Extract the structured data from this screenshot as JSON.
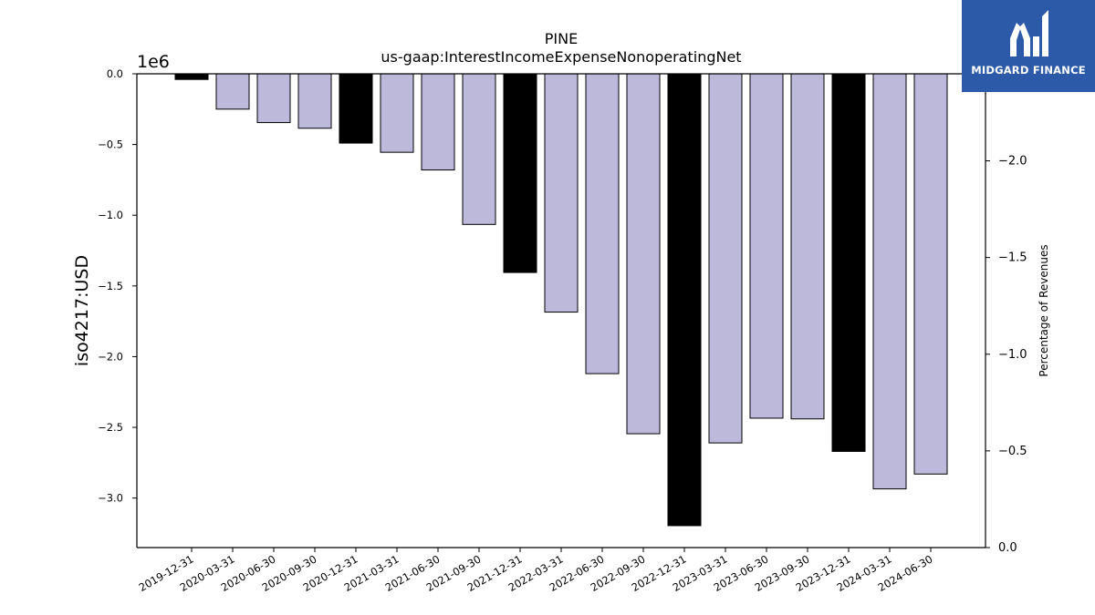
{
  "chart_data": {
    "type": "bar",
    "title": "PINE",
    "subtitle": "us-gaap:InterestIncomeExpenseNonoperatingNet",
    "ylabel": "iso4217:USD",
    "y_offset_text": "1e6",
    "y2label": "Percentage of Revenues",
    "categories": [
      "2019-12-31",
      "2020-03-31",
      "2020-06-30",
      "2020-09-30",
      "2020-12-31",
      "2021-03-31",
      "2021-06-30",
      "2021-09-30",
      "2021-12-31",
      "2022-03-31",
      "2022-06-30",
      "2022-09-30",
      "2022-12-31",
      "2023-03-31",
      "2023-06-30",
      "2023-09-30",
      "2023-12-31",
      "2024-03-31",
      "2024-06-30"
    ],
    "values": [
      -40000,
      -250000,
      -345000,
      -385000,
      -490000,
      -555000,
      -680000,
      -1065000,
      -1405000,
      -1685000,
      -2120000,
      -2545000,
      -3195000,
      -2610000,
      -2435000,
      -2440000,
      -2670000,
      -2935000,
      -2830000
    ],
    "highlight": [
      true,
      false,
      false,
      false,
      true,
      false,
      false,
      false,
      true,
      false,
      false,
      false,
      true,
      false,
      false,
      false,
      true,
      false,
      false
    ],
    "ylim": [
      -3350000,
      0
    ],
    "y_ticks": [
      0.0,
      -0.5,
      -1.0,
      -1.5,
      -2.0,
      -2.5,
      -3.0
    ],
    "y2lim": [
      0.0,
      -2.45
    ],
    "y2_ticks": [
      0.0,
      -0.5,
      -1.0,
      -1.5,
      -2.0
    ],
    "colors": {
      "highlight": "#000000",
      "normal": "#bcb9da",
      "edge": "#000000",
      "logo_bg": "#2c5aa8"
    },
    "grid": false
  },
  "logo": {
    "text": "MIDGARD FINANCE"
  }
}
